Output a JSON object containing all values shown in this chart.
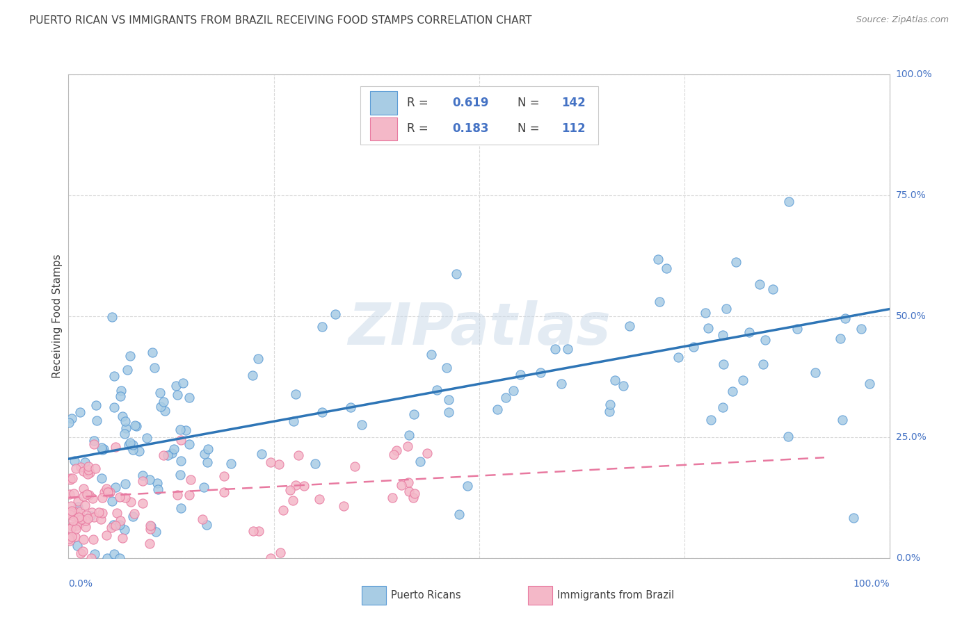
{
  "title": "PUERTO RICAN VS IMMIGRANTS FROM BRAZIL RECEIVING FOOD STAMPS CORRELATION CHART",
  "source": "Source: ZipAtlas.com",
  "ylabel": "Receiving Food Stamps",
  "blue_R": 0.619,
  "blue_N": 142,
  "pink_R": 0.183,
  "pink_N": 112,
  "legend_label_blue": "Puerto Ricans",
  "legend_label_pink": "Immigrants from Brazil",
  "watermark": "ZIPatlas",
  "blue_color": "#a8cce4",
  "pink_color": "#f4b8c8",
  "blue_edge_color": "#5b9bd5",
  "pink_edge_color": "#e879a0",
  "blue_line_color": "#2e75b6",
  "pink_line_color": "#e879a0",
  "background_color": "#ffffff",
  "grid_color": "#d9d9d9",
  "title_color": "#404040",
  "axis_tick_color": "#4472c4",
  "legend_text_color": "#404040",
  "legend_value_color": "#4472c4"
}
